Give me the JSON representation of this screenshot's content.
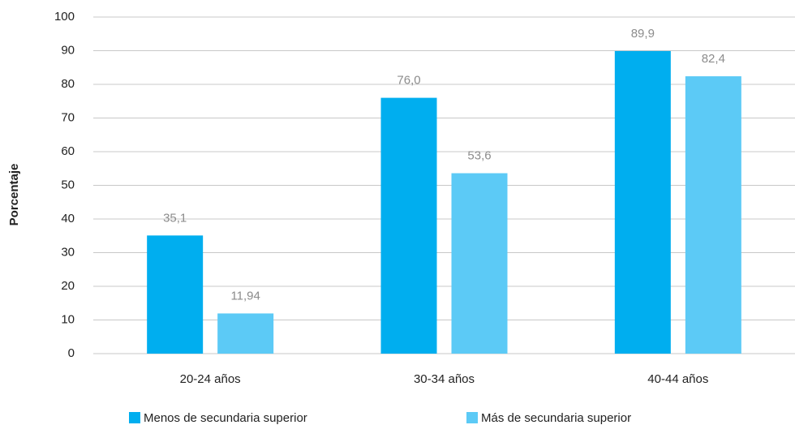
{
  "chart_data": {
    "type": "bar",
    "y_label": "Porcentaje",
    "categories": [
      "20-24 años",
      "30-34 años",
      "40-44 años"
    ],
    "series": [
      {
        "name": "Menos de secundaria superior",
        "color": "#00aeef",
        "values": [
          35.1,
          76.0,
          89.9
        ],
        "value_labels": [
          "35,1",
          "76,0",
          "89,9"
        ]
      },
      {
        "name": "Más de secundaria superior",
        "color": "#5ccaf6",
        "values": [
          11.94,
          53.6,
          82.4
        ],
        "value_labels": [
          "11,94",
          "53,6",
          "82,4"
        ]
      }
    ],
    "ylim": [
      0,
      100
    ],
    "yticks": [
      0,
      10,
      20,
      30,
      40,
      50,
      60,
      70,
      80,
      90,
      100
    ],
    "grid": true
  }
}
